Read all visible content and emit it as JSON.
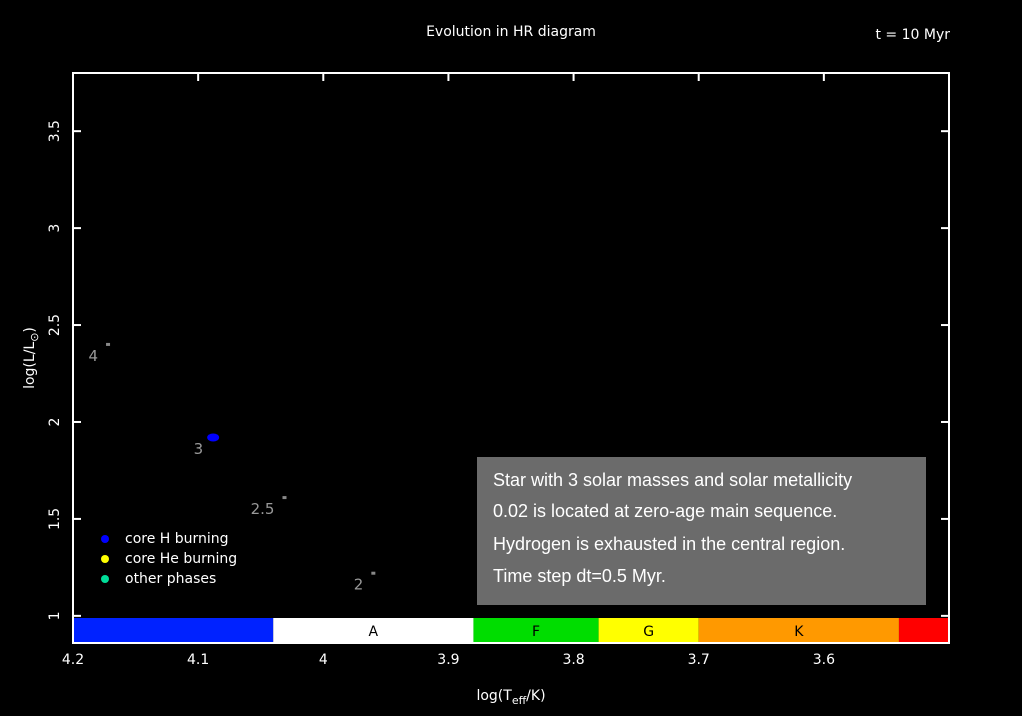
{
  "chart_data": {
    "type": "scatter",
    "title": "Evolution in HR diagram",
    "time_label": "t = 10 Myr",
    "x_label_parts": [
      "log(T",
      "eff",
      "/K)"
    ],
    "y_label_parts": [
      "log(L/L",
      "⊙",
      ")"
    ],
    "xlim": [
      4.2,
      3.5
    ],
    "ylim": [
      0.86,
      3.8
    ],
    "xticks": [
      4.2,
      4.1,
      4,
      3.9,
      3.8,
      3.7,
      3.6
    ],
    "yticks": [
      1,
      1.5,
      2,
      2.5,
      3,
      3.5
    ],
    "legend_position": "lower left",
    "series": [
      {
        "name": "core H burning",
        "color": "#0000ff",
        "x": [
          4.088
        ],
        "values": [
          1.92
        ]
      },
      {
        "name": "core He burning",
        "color": "#ffff00",
        "x": [],
        "values": []
      },
      {
        "name": "other phases",
        "color": "#00dd99",
        "x": [],
        "values": []
      }
    ],
    "annotations": [
      {
        "text": "4",
        "x": 4.172,
        "y": 2.4
      },
      {
        "text": "3",
        "x": 4.088,
        "y": 1.92
      },
      {
        "text": "2.5",
        "x": 4.031,
        "y": 1.61
      },
      {
        "text": "2",
        "x": 3.96,
        "y": 1.22
      }
    ],
    "spectral_classes": {
      "bounds": [
        4.2,
        4.04,
        3.88,
        3.78,
        3.7,
        3.54,
        3.5
      ],
      "labels": [
        null,
        "A",
        "F",
        "G",
        "K",
        null
      ],
      "colors": [
        "#0022ff",
        "#ffffff",
        "#00dd00",
        "#ffff00",
        "#ff9900",
        "#ff0000"
      ]
    },
    "note": [
      "Star with 3 solar masses and solar metallicity",
      "0.02 is located at zero-age main sequence.",
      "Hydrogen is exhausted in the central region.",
      "Time step dt=0.5 Myr."
    ]
  }
}
